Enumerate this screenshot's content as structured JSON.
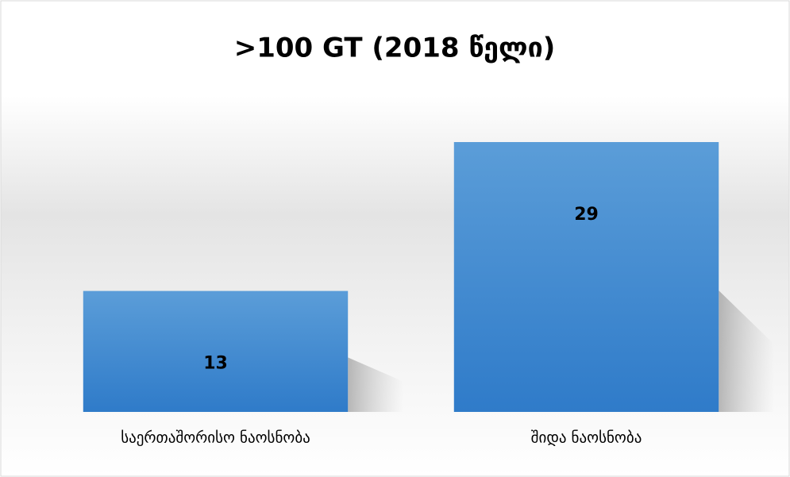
{
  "chart_data": {
    "type": "bar",
    "title": ">100 GT (2018 წელი)",
    "categories": [
      "საერთაშორისო ნაოსნობა",
      "შიდა ნაოსნობა"
    ],
    "values": [
      13,
      29
    ],
    "color": "#4a8fd4"
  }
}
